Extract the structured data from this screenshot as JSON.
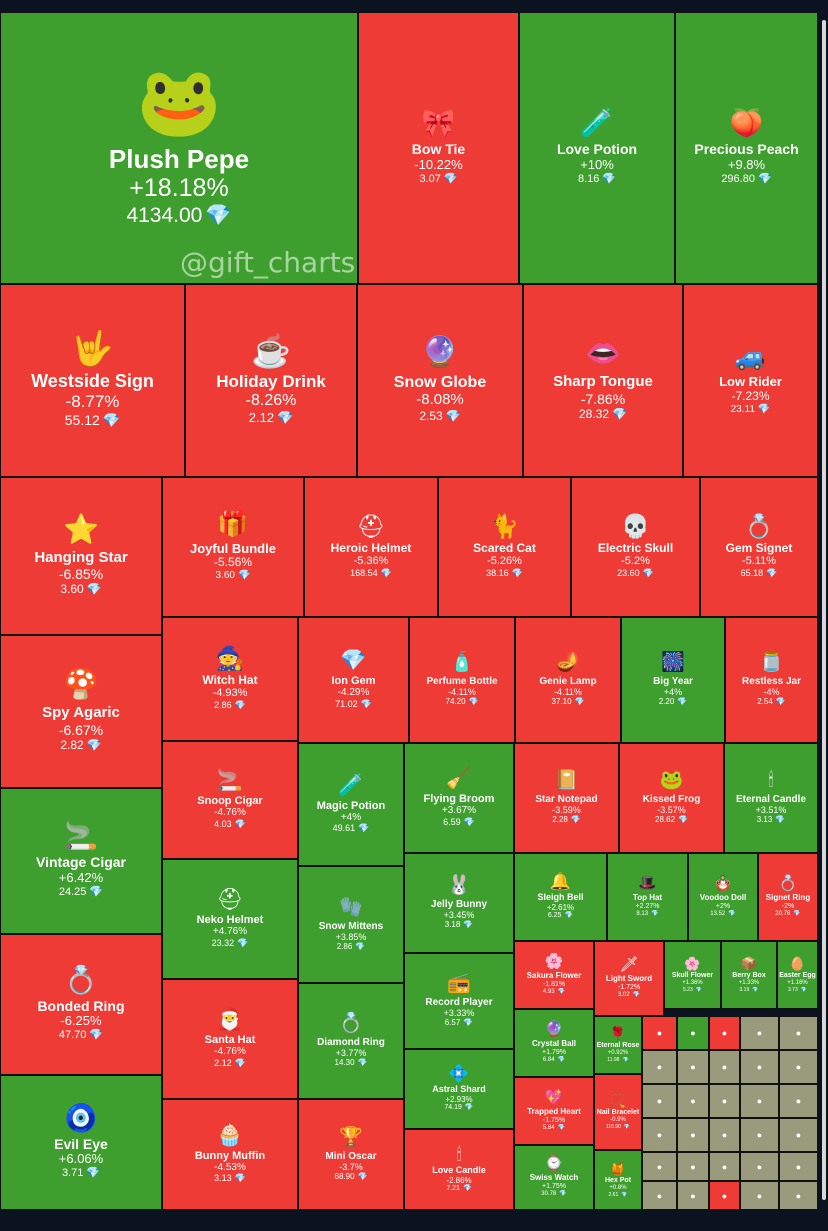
{
  "watermark": "@gift_charts",
  "colors": {
    "up": "#3f9f2e",
    "down": "#ef3b36",
    "flat": "#9a9a7c"
  },
  "chart_data": {
    "type": "treemap",
    "value_unit_icon": "diamond",
    "items": [
      {
        "name": "Plush Pepe",
        "change": "+18.18%",
        "price": "4134.00",
        "icon": "frog-plush-icon"
      },
      {
        "name": "Bow Tie",
        "change": "-10.22%",
        "price": "3.07",
        "icon": "bow-tie-icon"
      },
      {
        "name": "Love Potion",
        "change": "+10%",
        "price": "8.16",
        "icon": "potion-icon"
      },
      {
        "name": "Precious Peach",
        "change": "+9.8%",
        "price": "296.80",
        "icon": "peach-icon"
      },
      {
        "name": "Westside Sign",
        "change": "-8.77%",
        "price": "55.12",
        "icon": "hand-sign-icon"
      },
      {
        "name": "Holiday Drink",
        "change": "-8.26%",
        "price": "2.12",
        "icon": "mug-icon"
      },
      {
        "name": "Snow Globe",
        "change": "-8.08%",
        "price": "2.53",
        "icon": "snow-globe-icon"
      },
      {
        "name": "Sharp Tongue",
        "change": "-7.86%",
        "price": "28.32",
        "icon": "mouth-icon"
      },
      {
        "name": "Low Rider",
        "change": "-7.23%",
        "price": "23.11",
        "icon": "car-icon"
      },
      {
        "name": "Hanging Star",
        "change": "-6.85%",
        "price": "3.60",
        "icon": "star-icon"
      },
      {
        "name": "Joyful Bundle",
        "change": "-5.56%",
        "price": "3.60",
        "icon": "gift-bundle-icon"
      },
      {
        "name": "Heroic Helmet",
        "change": "-5.36%",
        "price": "168.54",
        "icon": "helmet-icon"
      },
      {
        "name": "Scared Cat",
        "change": "-5.26%",
        "price": "38.16",
        "icon": "cat-icon"
      },
      {
        "name": "Electric Skull",
        "change": "-5.2%",
        "price": "23.60",
        "icon": "skull-icon"
      },
      {
        "name": "Gem Signet",
        "change": "-5.11%",
        "price": "65.18",
        "icon": "ring-icon"
      },
      {
        "name": "Spy Agaric",
        "change": "-6.67%",
        "price": "2.82",
        "icon": "mushroom-icon"
      },
      {
        "name": "Witch Hat",
        "change": "-4.93%",
        "price": "2.86",
        "icon": "witch-hat-icon"
      },
      {
        "name": "Ion Gem",
        "change": "-4.29%",
        "price": "71.02",
        "icon": "gem-icon"
      },
      {
        "name": "Perfume Bottle",
        "change": "-4.11%",
        "price": "74.20",
        "icon": "perfume-icon"
      },
      {
        "name": "Genie Lamp",
        "change": "-4.11%",
        "price": "37.10",
        "icon": "lamp-icon"
      },
      {
        "name": "Big Year",
        "change": "+4%",
        "price": "2.20",
        "icon": "fireworks-icon"
      },
      {
        "name": "Restless Jar",
        "change": "-4%",
        "price": "2.54",
        "icon": "jar-icon"
      },
      {
        "name": "Vintage Cigar",
        "change": "+6.42%",
        "price": "24.25",
        "icon": "cigar-icon"
      },
      {
        "name": "Snoop Cigar",
        "change": "-4.76%",
        "price": "4.03",
        "icon": "cigar-icon"
      },
      {
        "name": "Magic Potion",
        "change": "+4%",
        "price": "49.61",
        "icon": "potion-icon"
      },
      {
        "name": "Flying Broom",
        "change": "+3.67%",
        "price": "6.59",
        "icon": "broom-icon"
      },
      {
        "name": "Star Notepad",
        "change": "-3.59%",
        "price": "2.28",
        "icon": "notepad-icon"
      },
      {
        "name": "Kissed Frog",
        "change": "-3.57%",
        "price": "28.62",
        "icon": "frog-icon"
      },
      {
        "name": "Eternal Candle",
        "change": "+3.51%",
        "price": "3.13",
        "icon": "candle-icon"
      },
      {
        "name": "Neko Helmet",
        "change": "+4.76%",
        "price": "23.32",
        "icon": "helmet-icon"
      },
      {
        "name": "Snow Mittens",
        "change": "+3.85%",
        "price": "2.86",
        "icon": "mittens-icon"
      },
      {
        "name": "Jelly Bunny",
        "change": "+3.45%",
        "price": "3.18",
        "icon": "bunny-icon"
      },
      {
        "name": "Sleigh Bell",
        "change": "+2.61%",
        "price": "6.25",
        "icon": "bell-icon"
      },
      {
        "name": "Top Hat",
        "change": "+2.27%",
        "price": "8.13",
        "icon": "top-hat-icon"
      },
      {
        "name": "Voodoo Doll",
        "change": "+2%",
        "price": "13.52",
        "icon": "doll-icon"
      },
      {
        "name": "Signet Ring",
        "change": "-2%",
        "price": "20.78",
        "icon": "ring-icon"
      },
      {
        "name": "Bonded Ring",
        "change": "-6.25%",
        "price": "47.70",
        "icon": "ring-icon"
      },
      {
        "name": "Santa Hat",
        "change": "-4.76%",
        "price": "2.12",
        "icon": "santa-hat-icon"
      },
      {
        "name": "Diamond Ring",
        "change": "+3.77%",
        "price": "14.30",
        "icon": "ring-box-icon"
      },
      {
        "name": "Record Player",
        "change": "+3.33%",
        "price": "6.57",
        "icon": "record-player-icon"
      },
      {
        "name": "Sakura Flower",
        "change": "-1.81%",
        "price": "4.93",
        "icon": "flower-icon"
      },
      {
        "name": "Light Sword",
        "change": "-1.72%",
        "price": "3.02",
        "icon": "sword-icon"
      },
      {
        "name": "Skull Flower",
        "change": "+1.36%",
        "price": "5.23",
        "icon": "flower-icon"
      },
      {
        "name": "Berry Box",
        "change": "+1.33%",
        "price": "3.19",
        "icon": "box-icon"
      },
      {
        "name": "Easter Egg",
        "change": "+1.16%",
        "price": "3.73",
        "icon": "egg-icon"
      },
      {
        "name": "Crystal Ball",
        "change": "+1.79%",
        "price": "6.84",
        "icon": "crystal-ball-icon"
      },
      {
        "name": "Eternal Rose",
        "change": "+0.92%",
        "price": "11.98",
        "icon": "rose-icon"
      },
      {
        "name": "Evil Eye",
        "change": "+6.06%",
        "price": "3.71",
        "icon": "eye-icon"
      },
      {
        "name": "Bunny Muffin",
        "change": "-4.53%",
        "price": "3.13",
        "icon": "muffin-icon"
      },
      {
        "name": "Mini Oscar",
        "change": "-3.7%",
        "price": "68.90",
        "icon": "trophy-icon"
      },
      {
        "name": "Astral Shard",
        "change": "+2.93%",
        "price": "74.19",
        "icon": "shard-icon"
      },
      {
        "name": "Love Candle",
        "change": "-2.86%",
        "price": "7.21",
        "icon": "candle-icon"
      },
      {
        "name": "Trapped Heart",
        "change": "-1.75%",
        "price": "5.84",
        "icon": "heart-icon"
      },
      {
        "name": "Swiss Watch",
        "change": "+1.75%",
        "price": "30.78",
        "icon": "watch-icon"
      },
      {
        "name": "Nail Bracelet",
        "change": "-0.9%",
        "price": "115.90",
        "icon": "bracelet-icon"
      },
      {
        "name": "Hex Pot",
        "change": "+0.8%",
        "price": "2.61",
        "icon": "pot-icon"
      }
    ]
  }
}
